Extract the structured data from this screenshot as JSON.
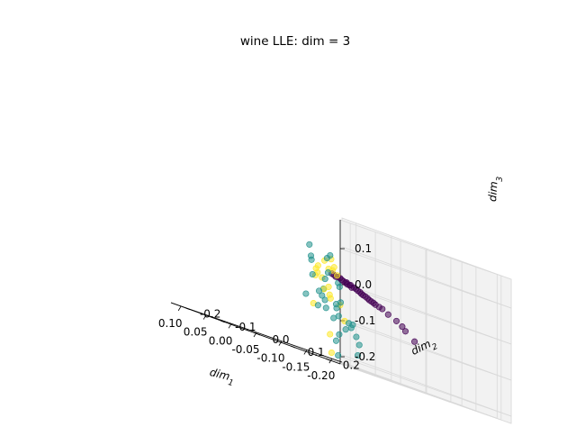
{
  "chart_data": {
    "type": "scatter3d",
    "title": "wine LLE: dim = 3",
    "xlabel_base": "dim",
    "xlabel_sub": "1",
    "ylabel_base": "dim",
    "ylabel_sub": "2",
    "zlabel_base": "dim",
    "zlabel_sub": "3",
    "xlim": [
      -0.22,
      0.12
    ],
    "ylim": [
      -0.24,
      0.24
    ],
    "zlim": [
      -0.22,
      0.18
    ],
    "x_ticks": [
      "-0.20",
      "-0.15",
      "-0.10",
      "-0.05",
      "0.00",
      "0.05",
      "0.10"
    ],
    "y_ticks": [
      "-0.2",
      "-0.1",
      "0.0",
      "0.1",
      "0.2"
    ],
    "z_ticks": [
      "-0.2",
      "-0.1",
      "0.0",
      "0.1"
    ],
    "grid": true,
    "colors": {
      "class_0": "#440154",
      "class_1": "#21918c",
      "class_2": "#fde725",
      "pane": "#f2f2f2",
      "grid": "#d9d9d9"
    },
    "series": [
      {
        "class": 0,
        "points": [
          [
            -0.21,
            -0.02,
            -0.09
          ],
          [
            -0.185,
            -0.01,
            -0.07
          ],
          [
            -0.175,
            -0.005,
            -0.06
          ],
          [
            -0.16,
            0.0,
            -0.05
          ],
          [
            -0.14,
            0.005,
            -0.04
          ],
          [
            -0.125,
            0.01,
            -0.03
          ],
          [
            -0.11,
            0.012,
            -0.025
          ],
          [
            -0.1,
            0.015,
            -0.02
          ],
          [
            -0.09,
            0.018,
            -0.015
          ],
          [
            -0.08,
            0.02,
            -0.01
          ],
          [
            -0.07,
            0.025,
            -0.005
          ],
          [
            -0.06,
            0.028,
            0.0
          ],
          [
            -0.05,
            0.03,
            0.0
          ],
          [
            -0.04,
            0.032,
            0.005
          ],
          [
            -0.03,
            0.035,
            0.01
          ],
          [
            -0.02,
            0.04,
            0.015
          ],
          [
            -0.01,
            0.042,
            0.015
          ],
          [
            0.0,
            0.045,
            0.02
          ],
          [
            -0.12,
            0.008,
            -0.028
          ],
          [
            -0.095,
            0.016,
            -0.018
          ],
          [
            -0.075,
            0.022,
            -0.008
          ],
          [
            -0.065,
            0.026,
            -0.003
          ],
          [
            -0.055,
            0.029,
            0.002
          ],
          [
            -0.045,
            0.031,
            0.004
          ],
          [
            -0.035,
            0.034,
            0.008
          ],
          [
            -0.025,
            0.037,
            0.012
          ],
          [
            -0.015,
            0.041,
            0.016
          ],
          [
            -0.005,
            0.044,
            0.018
          ],
          [
            -0.085,
            0.019,
            -0.012
          ],
          [
            -0.105,
            0.014,
            -0.022
          ],
          [
            -0.048,
            0.03,
            0.006
          ],
          [
            -0.038,
            0.033,
            0.009
          ]
        ]
      },
      {
        "class": 1,
        "points": [
          [
            0.04,
            0.18,
            -0.15
          ],
          [
            0.05,
            0.19,
            -0.18
          ],
          [
            0.06,
            0.2,
            -0.13
          ],
          [
            0.07,
            0.15,
            -0.1
          ],
          [
            0.08,
            0.12,
            -0.08
          ],
          [
            0.09,
            0.1,
            -0.06
          ],
          [
            0.05,
            0.08,
            -0.04
          ],
          [
            0.03,
            0.06,
            -0.05
          ],
          [
            0.06,
            0.12,
            0.02
          ],
          [
            0.08,
            0.1,
            0.05
          ],
          [
            0.07,
            0.14,
            0.07
          ],
          [
            0.09,
            0.16,
            0.06
          ],
          [
            0.1,
            0.13,
            0.04
          ],
          [
            0.05,
            0.1,
            -0.08
          ],
          [
            0.04,
            0.15,
            -0.1
          ],
          [
            0.06,
            0.17,
            -0.12
          ],
          [
            0.08,
            0.18,
            -0.14
          ],
          [
            0.1,
            0.2,
            -0.16
          ],
          [
            0.07,
            0.09,
            0.0
          ],
          [
            0.02,
            0.05,
            -0.03
          ],
          [
            -0.04,
            0.01,
            -0.01
          ],
          [
            -0.03,
            0.02,
            0.0
          ],
          [
            0.01,
            0.04,
            -0.06
          ],
          [
            0.09,
            0.11,
            0.08
          ],
          [
            0.06,
            0.15,
            -0.09
          ],
          [
            0.05,
            0.13,
            -0.07
          ],
          [
            0.07,
            0.2,
            -0.11
          ],
          [
            0.04,
            0.12,
            -0.2
          ],
          [
            0.03,
            0.1,
            -0.06
          ],
          [
            0.08,
            0.14,
            0.0
          ],
          [
            0.06,
            0.19,
            -0.1
          ],
          [
            0.07,
            0.17,
            -0.05
          ]
        ]
      },
      {
        "class": 2,
        "points": [
          [
            0.02,
            0.08,
            0.04
          ],
          [
            0.04,
            0.1,
            0.06
          ],
          [
            0.06,
            0.11,
            0.05
          ],
          [
            0.03,
            0.09,
            0.03
          ],
          [
            0.05,
            0.07,
            0.0
          ],
          [
            0.0,
            0.06,
            0.02
          ],
          [
            0.01,
            0.05,
            -0.02
          ],
          [
            0.02,
            0.07,
            -0.05
          ],
          [
            -0.02,
            0.04,
            -0.06
          ],
          [
            -0.05,
            0.01,
            -0.1
          ],
          [
            -0.01,
            0.03,
            -0.2
          ],
          [
            0.04,
            0.08,
            -0.03
          ],
          [
            0.07,
            0.1,
            0.02
          ],
          [
            0.06,
            0.09,
            0.01
          ],
          [
            0.03,
            0.06,
            0.0
          ],
          [
            0.05,
            0.11,
            -0.04
          ],
          [
            0.01,
            0.05,
            0.03
          ],
          [
            0.0,
            0.04,
            -0.15
          ],
          [
            0.08,
            0.12,
            0.03
          ],
          [
            0.04,
            0.05,
            -0.08
          ]
        ]
      }
    ]
  }
}
